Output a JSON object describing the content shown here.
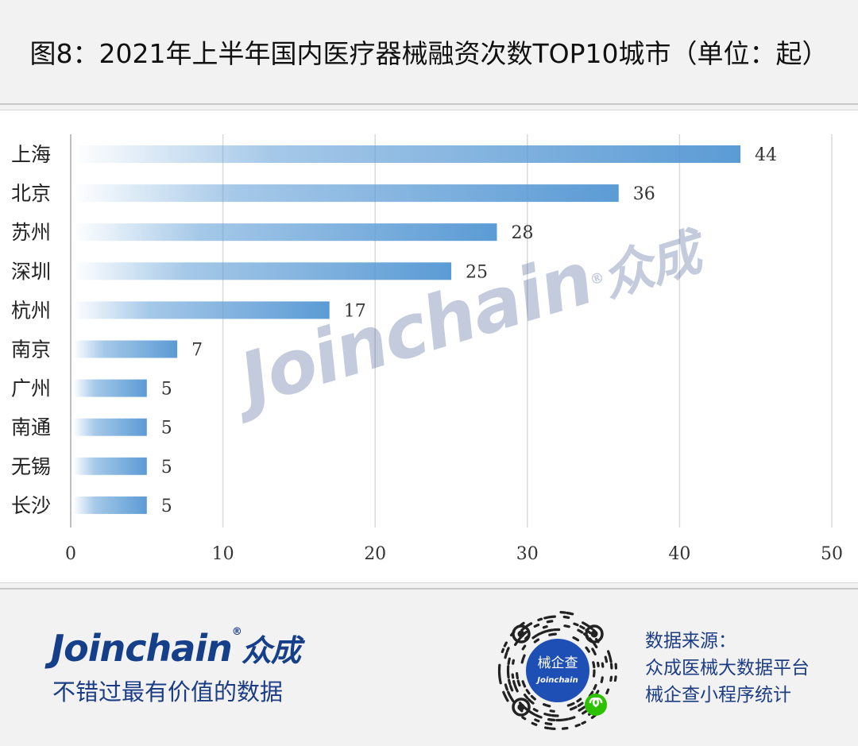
{
  "title": "图8：2021年上半年国内医疗器械融资次数TOP10城市（单位：起）",
  "chart_data": {
    "type": "bar",
    "orientation": "horizontal",
    "categories": [
      "上海",
      "北京",
      "苏州",
      "深圳",
      "杭州",
      "南京",
      "广州",
      "南通",
      "无锡",
      "长沙"
    ],
    "values": [
      44,
      36,
      28,
      25,
      17,
      7,
      5,
      5,
      5,
      5
    ],
    "xlim": [
      0,
      50
    ],
    "xticks": [
      0,
      10,
      20,
      30,
      40,
      50
    ],
    "grid": true,
    "data_labels": true,
    "bar_color": "#5b9bd5"
  },
  "watermark": {
    "latin": "Joinchain",
    "mark": "®",
    "cn": "众成"
  },
  "footer": {
    "brand_latin": "Joinchain",
    "brand_mark": "®",
    "brand_cn": "众成",
    "slogan": "不错过最有价值的数据",
    "qr_center_cn": "械企查",
    "qr_center_latin": "Joinchain",
    "source_lines": [
      "数据来源：",
      "众成医械大数据平台",
      "械企查小程序统计"
    ]
  },
  "colors": {
    "brand_blue": "#163f8a",
    "bar": "#5b9bd5",
    "qr_center": "#1e4fb5",
    "wechat_green": "#2dc100"
  }
}
